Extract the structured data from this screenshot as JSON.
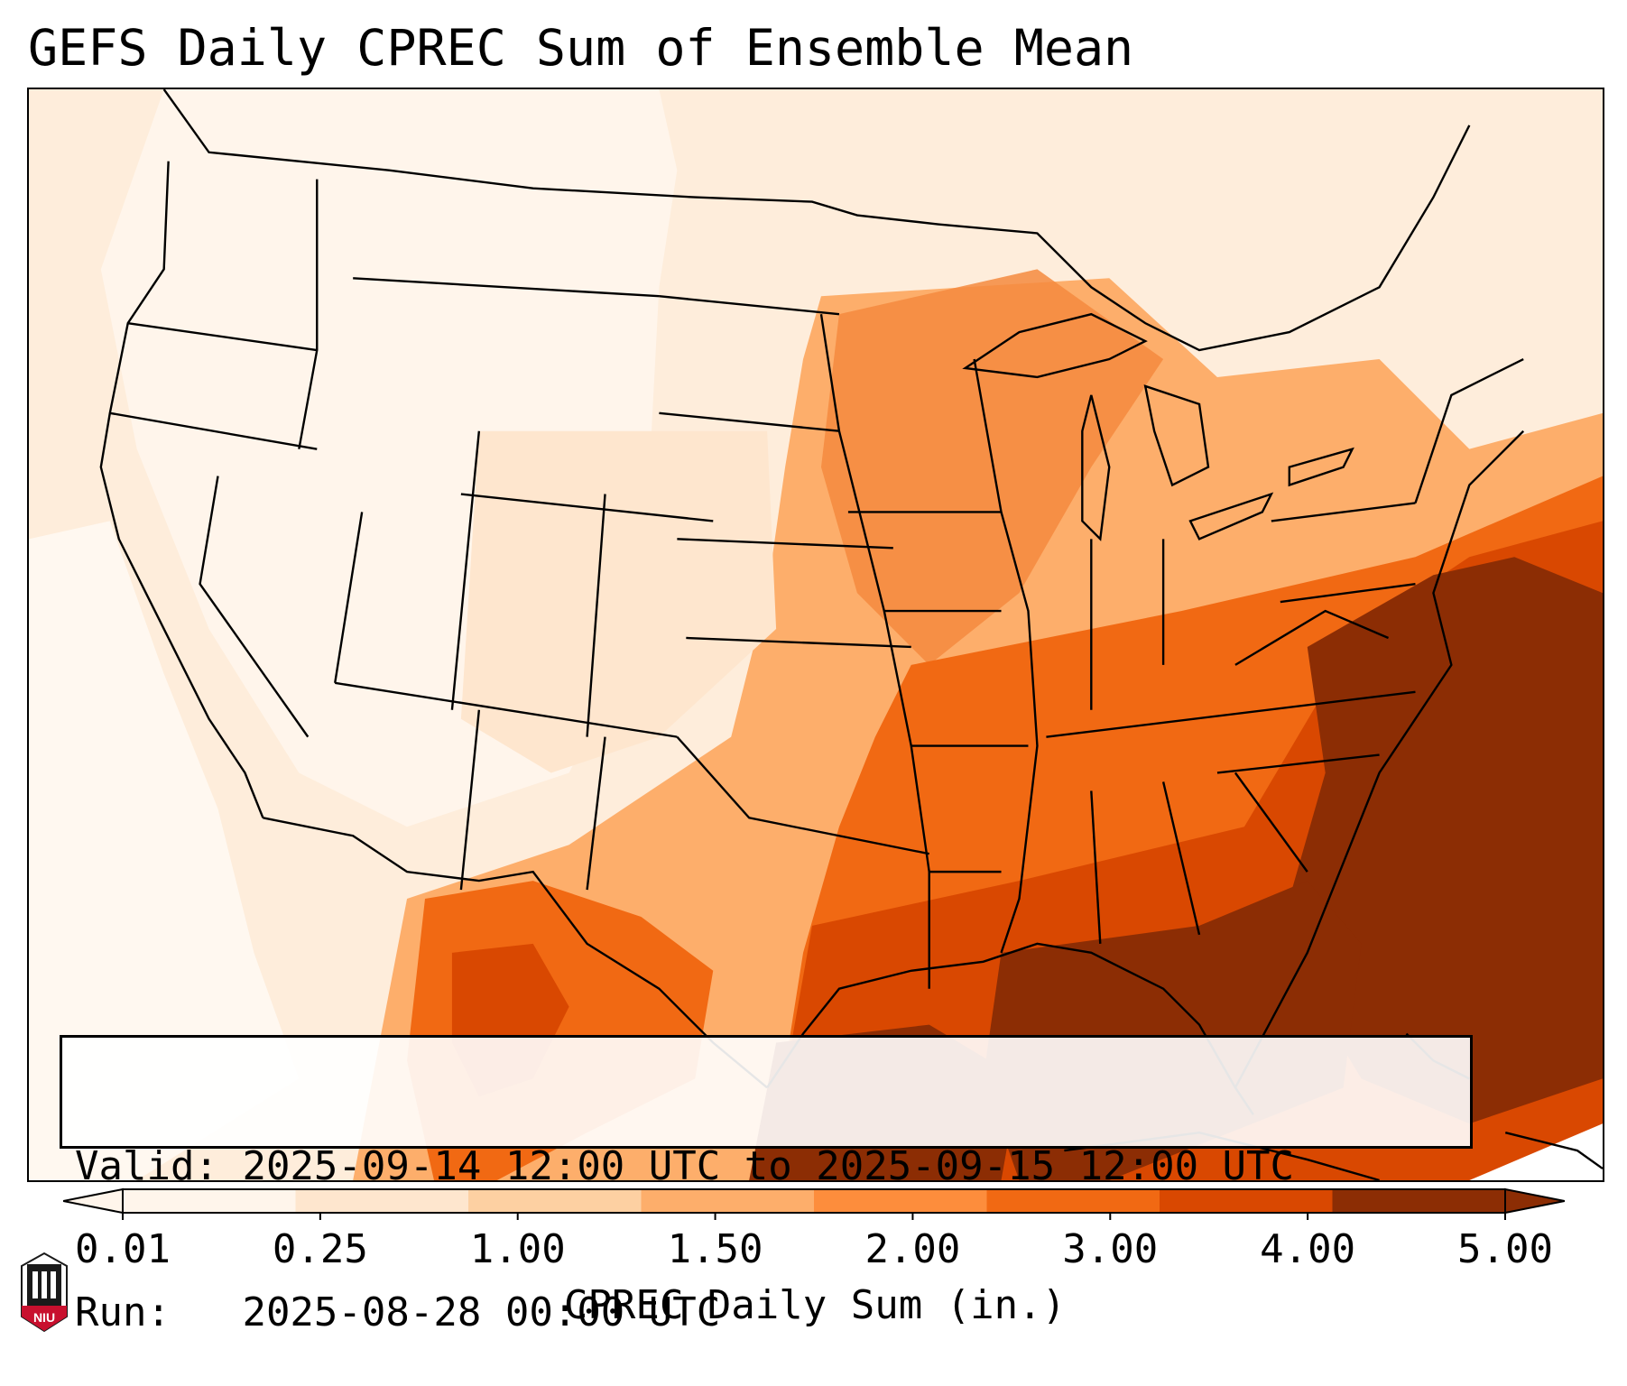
{
  "title": "GEFS Daily CPREC Sum of Ensemble Mean",
  "info": {
    "valid_label": "Valid:",
    "valid_value": "2025-09-14 12:00 UTC to 2025-09-15 12:00 UTC",
    "run_label": "Run:",
    "run_value": "2025-08-28 00:00 UTC"
  },
  "colorbar": {
    "label": "CPREC Daily Sum (in.)",
    "ticks": [
      "0.01",
      "0.25",
      "1.00",
      "1.50",
      "2.00",
      "3.00",
      "4.00",
      "5.00"
    ],
    "colors": [
      "#fff5eb",
      "#fee6ce",
      "#fdd0a2",
      "#fdae6b",
      "#fd8d3c",
      "#f16913",
      "#d94801",
      "#8c2d04"
    ],
    "extend": "both"
  },
  "logo": {
    "text": "NIU",
    "name": "niu-logo"
  },
  "map": {
    "projection": "lambert-conformal",
    "region": "CONUS",
    "field_colors": {
      "lowest": "#fff5eb",
      "low": "#fee6ce",
      "mid": "#fdd0a2",
      "moderate": "#fdae6b",
      "high": "#f16913",
      "very_high": "#d94801",
      "extreme": "#8c2d04"
    }
  }
}
